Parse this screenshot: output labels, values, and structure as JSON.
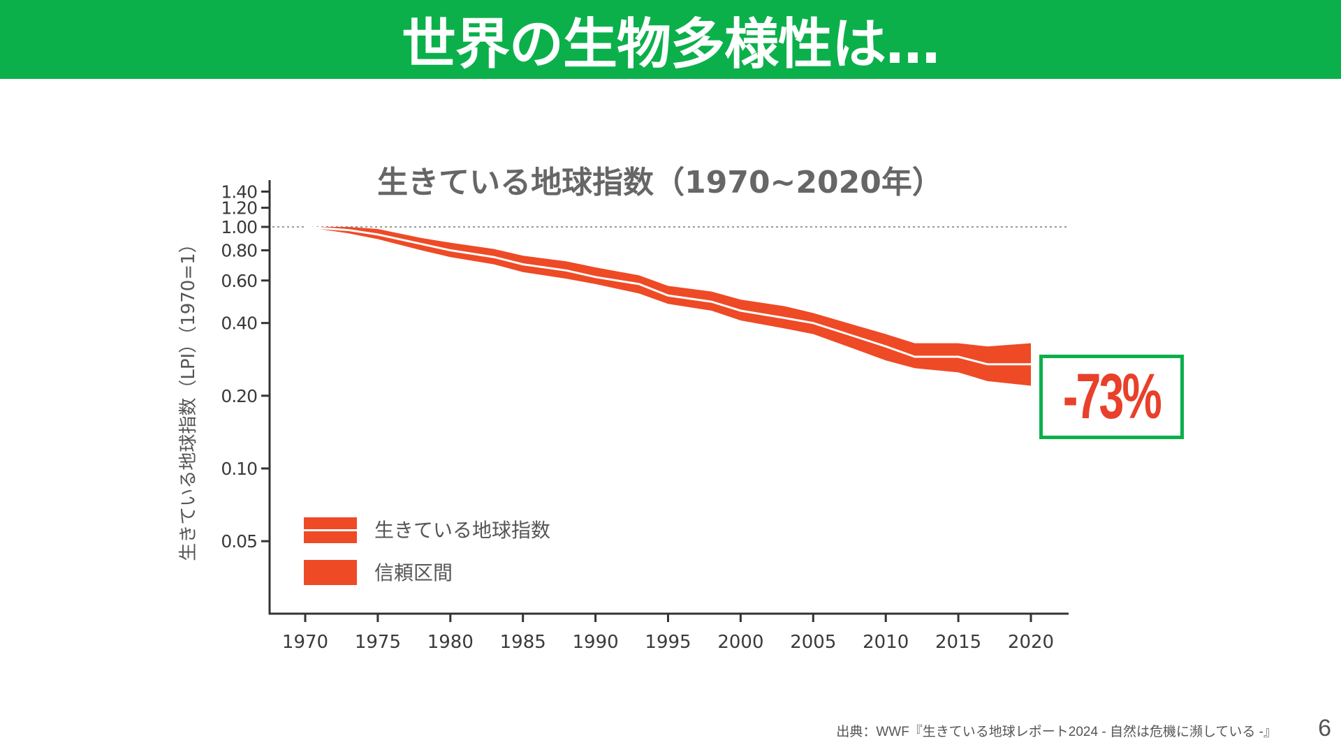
{
  "header": {
    "title": "世界の生物多様性は…"
  },
  "chart_data": {
    "type": "line",
    "title": "生きている地球指数（1970~2020年）",
    "xlabel": "",
    "ylabel": "生きている地球指数（LPI）（1970=1）",
    "yscale": "log",
    "xlim": [
      1967,
      2023
    ],
    "ylim": [
      0.03,
      1.5
    ],
    "x_ticks": [
      "1970",
      "1975",
      "1980",
      "1985",
      "1990",
      "1995",
      "2000",
      "2005",
      "2010",
      "2015",
      "2020"
    ],
    "y_ticks": [
      {
        "value": 1.4,
        "label": "1.40"
      },
      {
        "value": 1.2,
        "label": "1.20"
      },
      {
        "value": 1.0,
        "label": "1.00"
      },
      {
        "value": 0.8,
        "label": "0.80"
      },
      {
        "value": 0.6,
        "label": "0.60"
      },
      {
        "value": 0.4,
        "label": "0.40"
      },
      {
        "value": 0.2,
        "label": "0.20"
      },
      {
        "value": 0.1,
        "label": "0.10"
      },
      {
        "value": 0.05,
        "label": "0.05"
      }
    ],
    "reference_line": 1.0,
    "series": [
      {
        "name": "生きている地球指数",
        "x": [
          1970,
          1973,
          1975,
          1978,
          1980,
          1983,
          1985,
          1988,
          1990,
          1993,
          1995,
          1998,
          2000,
          2003,
          2005,
          2008,
          2010,
          2012,
          2015,
          2017,
          2020
        ],
        "values": [
          1.0,
          0.97,
          0.93,
          0.85,
          0.8,
          0.75,
          0.7,
          0.66,
          0.62,
          0.58,
          0.52,
          0.49,
          0.45,
          0.42,
          0.4,
          0.35,
          0.32,
          0.29,
          0.29,
          0.27,
          0.27
        ],
        "lower": [
          1.0,
          0.94,
          0.89,
          0.8,
          0.75,
          0.7,
          0.65,
          0.61,
          0.58,
          0.53,
          0.48,
          0.45,
          0.41,
          0.38,
          0.36,
          0.31,
          0.28,
          0.26,
          0.25,
          0.23,
          0.22
        ],
        "upper": [
          1.0,
          1.0,
          0.98,
          0.9,
          0.86,
          0.81,
          0.76,
          0.72,
          0.68,
          0.63,
          0.57,
          0.54,
          0.5,
          0.47,
          0.44,
          0.39,
          0.36,
          0.33,
          0.33,
          0.32,
          0.33
        ]
      }
    ],
    "legend": [
      {
        "label": "生きている地球指数"
      },
      {
        "label": "信頼区間"
      }
    ],
    "legend_position": "bottom-left",
    "annotation": "-73%",
    "colors": {
      "band": "#ee4a26",
      "line": "#ffffff",
      "axis": "#333333",
      "box": "#0bb04b"
    }
  },
  "footer": {
    "source": "出典：WWF『生きている地球レポート2024 - 自然は危機に瀕している -』",
    "page": "6"
  }
}
